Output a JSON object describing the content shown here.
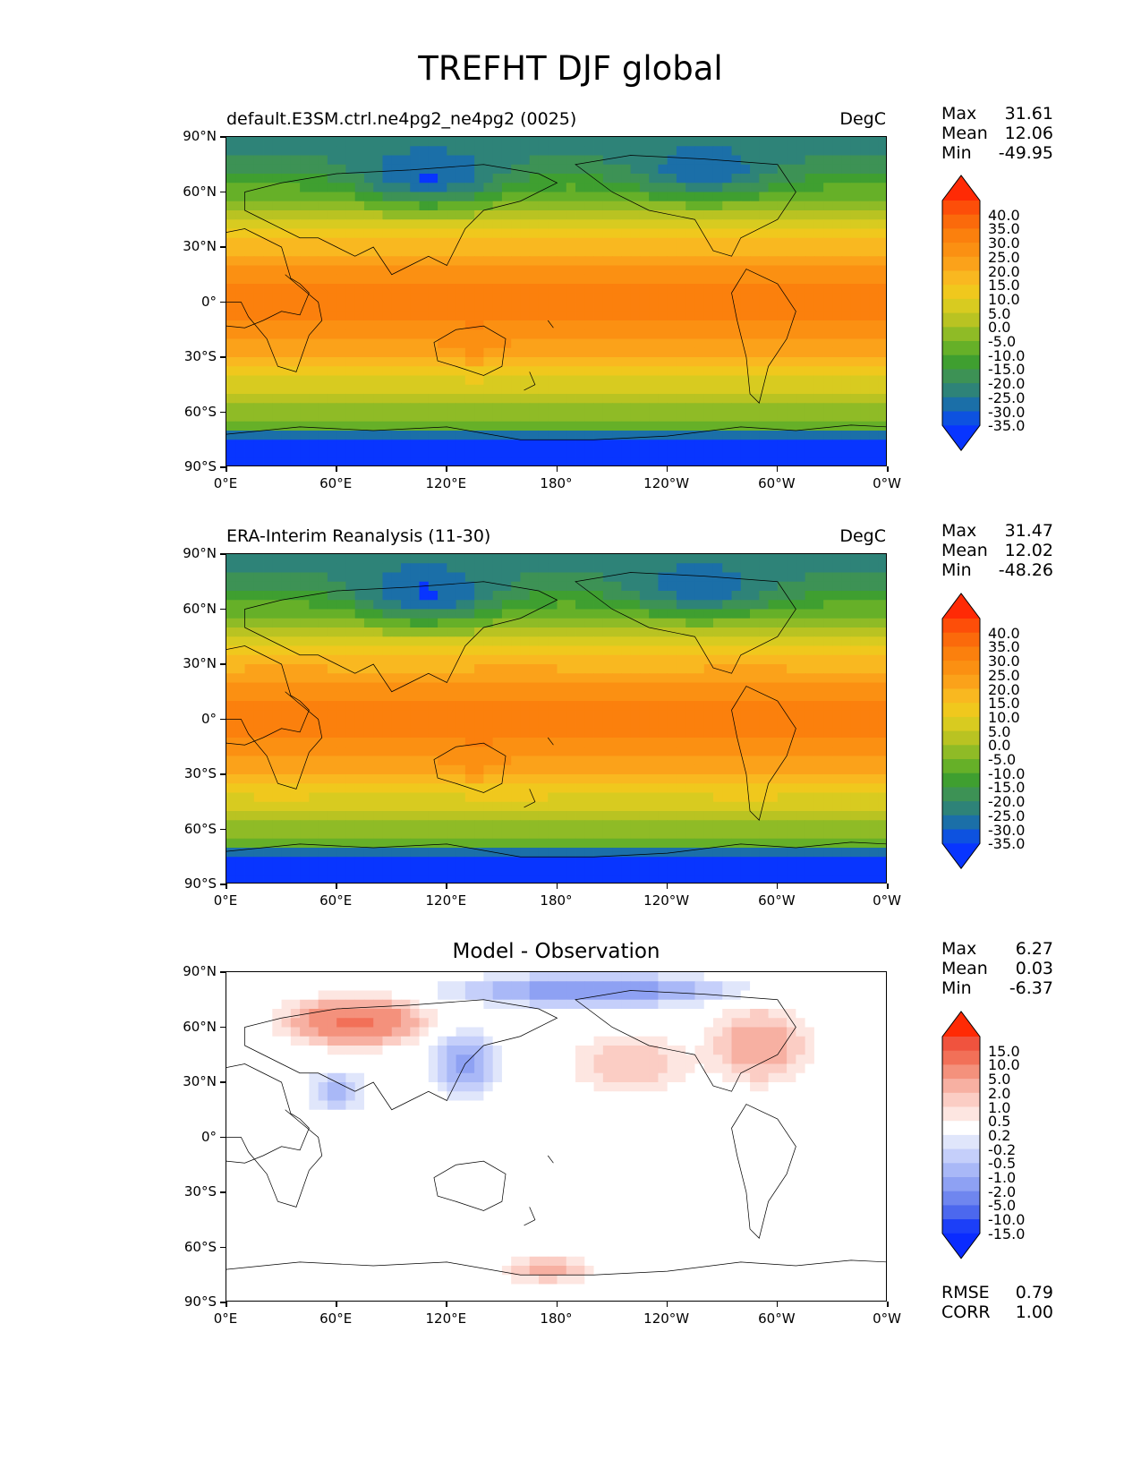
{
  "figure_title": "TREFHT DJF global",
  "axes": {
    "lat_ticks": [
      "90°N",
      "60°N",
      "30°N",
      "0°",
      "30°S",
      "60°S",
      "90°S"
    ],
    "lon_ticks": [
      "0°E",
      "60°E",
      "120°E",
      "180°",
      "120°W",
      "60°W",
      "0°W"
    ]
  },
  "panels": [
    {
      "title_left": "default.E3SM.ctrl.ne4pg2_ne4pg2 (0025)",
      "title_right": "DegC",
      "stats": {
        "max_label": "Max",
        "max": "31.61",
        "mean_label": "Mean",
        "mean": "12.06",
        "min_label": "Min",
        "min": "-49.95"
      },
      "colorbar": {
        "labels": [
          "40.0",
          "35.0",
          "30.0",
          "25.0",
          "20.0",
          "15.0",
          "10.0",
          "5.0",
          "0.0",
          "-5.0",
          "-10.0",
          "-15.0",
          "-20.0",
          "-25.0",
          "-30.0",
          "-35.0"
        ],
        "colors": [
          "#ff2a05",
          "#fd4e09",
          "#fb6a0b",
          "#fb800d",
          "#fb9012",
          "#fba21a",
          "#f9b820",
          "#f0c81d",
          "#d8cb20",
          "#b9c322",
          "#8fbb26",
          "#66b028",
          "#3f9f30",
          "#3d9255",
          "#2e8378",
          "#1b6fa8",
          "#0d52e0",
          "#0835ff"
        ]
      }
    },
    {
      "title_left": "ERA-Interim Reanalysis (11-30)",
      "title_right": "DegC",
      "stats": {
        "max_label": "Max",
        "max": "31.47",
        "mean_label": "Mean",
        "mean": "12.02",
        "min_label": "Min",
        "min": "-48.26"
      },
      "colorbar": {
        "labels": [
          "40.0",
          "35.0",
          "30.0",
          "25.0",
          "20.0",
          "15.0",
          "10.0",
          "5.0",
          "0.0",
          "-5.0",
          "-10.0",
          "-15.0",
          "-20.0",
          "-25.0",
          "-30.0",
          "-35.0"
        ],
        "colors": [
          "#ff2a05",
          "#fd4e09",
          "#fb6a0b",
          "#fb800d",
          "#fb9012",
          "#fba21a",
          "#f9b820",
          "#f0c81d",
          "#d8cb20",
          "#b9c322",
          "#8fbb26",
          "#66b028",
          "#3f9f30",
          "#3d9255",
          "#2e8378",
          "#1b6fa8",
          "#0d52e0",
          "#0835ff"
        ]
      }
    },
    {
      "title_center": "Model - Observation",
      "stats": {
        "max_label": "Max",
        "max": "6.27",
        "mean_label": "Mean",
        "mean": "0.03",
        "min_label": "Min",
        "min": "-6.37"
      },
      "colorbar": {
        "labels": [
          "15.0",
          "10.0",
          "5.0",
          "2.0",
          "1.0",
          "0.5",
          "0.2",
          "-0.2",
          "-0.5",
          "-1.0",
          "-2.0",
          "-5.0",
          "-10.0",
          "-15.0"
        ],
        "colors": [
          "#ff2a05",
          "#f0533e",
          "#f27058",
          "#f4917c",
          "#f7b0a2",
          "#fbcdc4",
          "#fde6e1",
          "#ffffff",
          "#e0e6fb",
          "#c5cffa",
          "#a9b8f7",
          "#8ea1f3",
          "#6f86ef",
          "#4c68ee",
          "#1c3ff8",
          "#0a2bff"
        ]
      },
      "extra_stats": {
        "rmse_label": "RMSE",
        "rmse": "0.79",
        "corr_label": "CORR",
        "corr": "1.00"
      }
    }
  ]
}
